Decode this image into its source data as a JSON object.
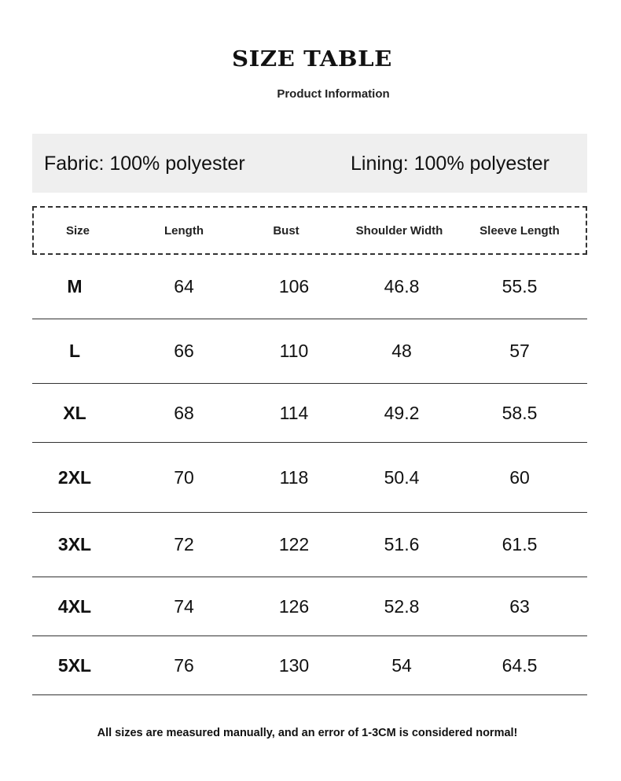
{
  "title": "SIZE TABLE",
  "subtitle": "Product Information",
  "fabric": "Fabric: 100% polyester",
  "lining": "Lining: 100% polyester",
  "columns": [
    "Size",
    "Length",
    "Bust",
    "Shoulder Width",
    "Sleeve Length"
  ],
  "rows": [
    [
      "M",
      "64",
      "106",
      "46.8",
      "55.5"
    ],
    [
      "L",
      "66",
      "110",
      "48",
      "57"
    ],
    [
      "XL",
      "68",
      "114",
      "49.2",
      "58.5"
    ],
    [
      "2XL",
      "70",
      "118",
      "50.4",
      "60"
    ],
    [
      "3XL",
      "72",
      "122",
      "51.6",
      "61.5"
    ],
    [
      "4XL",
      "74",
      "126",
      "52.8",
      "63"
    ],
    [
      "5XL",
      "76",
      "130",
      "54",
      "64.5"
    ]
  ],
  "footer": "All sizes are measured manually, and an error of 1-3CM is considered normal!"
}
